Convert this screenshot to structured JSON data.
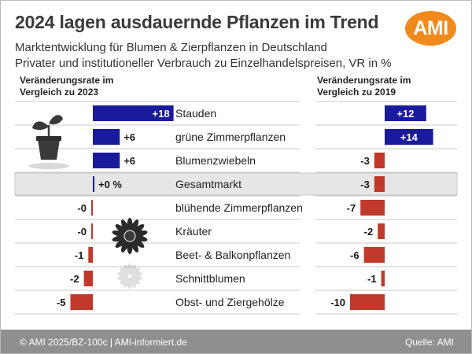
{
  "header": {
    "title": "2024 lagen ausdauernde Pflanzen im Trend",
    "subtitle_1": "Marktentwicklung für Blumen & Zierpflanzen in Deutschland",
    "subtitle_2": "Privater und institutioneller Verbrauch zu Einzelhandelspreisen, VR in %",
    "logo": "AMI"
  },
  "colors": {
    "positive": "#1a1a9c",
    "negative": "#c0392b",
    "highlight_row": "#e6e6e6",
    "logo": "#f08a1c",
    "footer": "#8f8f8f"
  },
  "icons": [
    "plant-pot-icon",
    "flower-icon"
  ],
  "chart_data": [
    {
      "type": "bar",
      "orientation": "horizontal",
      "title": "Veränderungsrate im Vergleich zu 2023",
      "categories": [
        "Stauden",
        "grüne Zimmerpflanzen",
        "Blumenzwiebeln",
        "Gesamtmarkt",
        "blühende Zimmerpflanzen",
        "Kräuter",
        "Beet- & Balkonpflanzen",
        "Schnittblumen",
        "Obst- und Ziergehölze"
      ],
      "values": [
        18,
        6,
        6,
        0,
        0,
        0,
        -1,
        -2,
        -5
      ],
      "labels": [
        "+18",
        "+6",
        "+6",
        "+0 %",
        "-0",
        "-0",
        "-1",
        "-2",
        "-5"
      ],
      "highlight_category": "Gesamtmarkt"
    },
    {
      "type": "bar",
      "orientation": "horizontal",
      "title": "Veränderungsrate im Vergleich zu 2019",
      "categories": [
        "Stauden",
        "grüne Zimmerpflanzen",
        "Blumenzwiebeln",
        "Gesamtmarkt",
        "blühende Zimmerpflanzen",
        "Kräuter",
        "Beet- & Balkonpflanzen",
        "Schnittblumen",
        "Obst- und Ziergehölze"
      ],
      "values": [
        12,
        14,
        -3,
        -3,
        -7,
        -2,
        -6,
        -1,
        -10
      ],
      "labels": [
        "+12",
        "+14",
        "-3",
        "-3",
        "-7",
        "-2",
        "-6",
        "-1",
        "-10"
      ],
      "highlight_category": "Gesamtmarkt"
    }
  ],
  "footer": {
    "left": "© AMI 2025/BZ-100c | AMI-informiert.de",
    "right": "Quelle: AMI"
  }
}
